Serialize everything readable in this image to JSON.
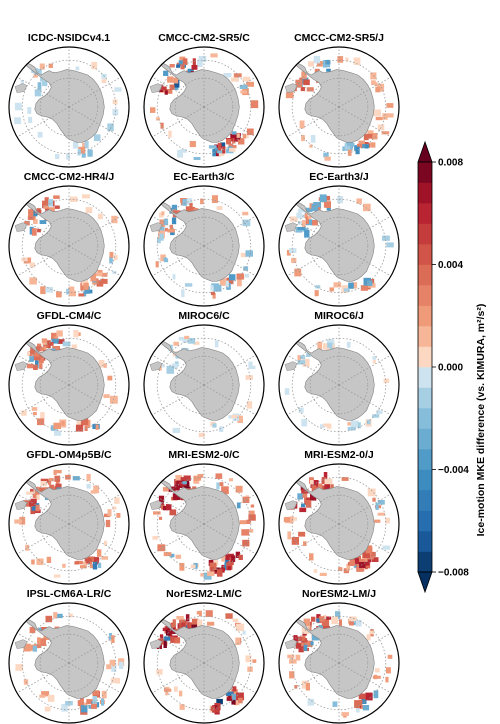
{
  "chart_data": {
    "type": "heatmap",
    "projection": "south-polar-stereographic",
    "layout": {
      "rows": 5,
      "cols": 3
    },
    "panels": [
      {
        "title": "ICDC-NSIDCv4.1",
        "signal": 0.25,
        "sign_bias": -0.6
      },
      {
        "title": "CMCC-CM2-SR5/C",
        "signal": 0.9,
        "sign_bias": 0.4
      },
      {
        "title": "CMCC-CM2-SR5/J",
        "signal": 0.6,
        "sign_bias": 0.3
      },
      {
        "title": "CMCC-CM2-HR4/J",
        "signal": 0.6,
        "sign_bias": 0.5
      },
      {
        "title": "EC-Earth3/C",
        "signal": 0.55,
        "sign_bias": 0.2
      },
      {
        "title": "EC-Earth3/J",
        "signal": 0.5,
        "sign_bias": 0.1
      },
      {
        "title": "GFDL-CM4/C",
        "signal": 0.65,
        "sign_bias": 0.7
      },
      {
        "title": "MIROC6/C",
        "signal": 0.15,
        "sign_bias": -0.3
      },
      {
        "title": "MIROC6/J",
        "signal": 0.15,
        "sign_bias": -0.3
      },
      {
        "title": "GFDL-OM4p5B/C",
        "signal": 0.7,
        "sign_bias": 0.7
      },
      {
        "title": "MRI-ESM2-0/C",
        "signal": 0.95,
        "sign_bias": 0.8
      },
      {
        "title": "MRI-ESM2-0/J",
        "signal": 0.9,
        "sign_bias": 0.8
      },
      {
        "title": "IPSL-CM6A-LR/C",
        "signal": 0.5,
        "sign_bias": 0.6
      },
      {
        "title": "NorESM2-LM/C",
        "signal": 0.95,
        "sign_bias": 0.8
      },
      {
        "title": "NorESM2-LM/J",
        "signal": 0.8,
        "sign_bias": 0.7
      }
    ],
    "colorbar": {
      "label": "Ice-motion MKE difference (vs. KIMURA, m²/s²)",
      "ticks": [
        "0.008",
        "0.004",
        "0.000",
        "−0.004",
        "−0.008"
      ],
      "tick_values": [
        0.008,
        0.004,
        0.0,
        -0.004,
        -0.008
      ],
      "range": [
        -0.008,
        0.008
      ],
      "levels": 20,
      "extend": "both",
      "colormap": "RdBu_r"
    },
    "colors": {
      "land": "#c6c6c6",
      "ocean": "#ffffff",
      "gridline": "#9a9a9a"
    }
  }
}
